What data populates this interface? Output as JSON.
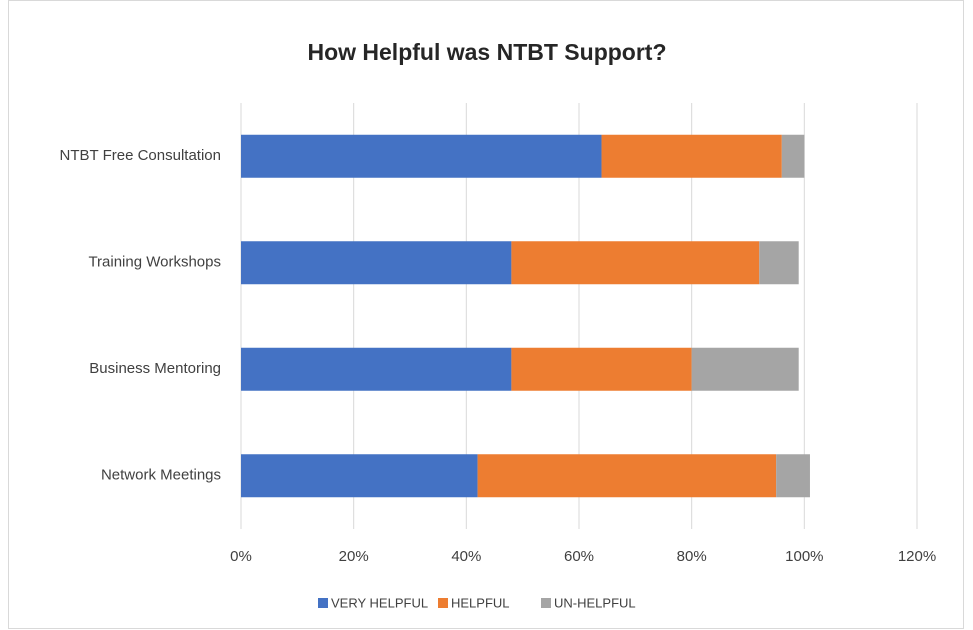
{
  "chart_data": {
    "type": "stacked_bar_horizontal",
    "title": "How Helpful was NTBT Support?",
    "categories": [
      "NTBT Free Consultation",
      "Training Workshops",
      "Business Mentoring",
      "Network Meetings"
    ],
    "series": [
      {
        "name": "VERY HELPFUL",
        "color": "#4472c4",
        "values": [
          64,
          48,
          48,
          42
        ]
      },
      {
        "name": "HELPFUL",
        "color": "#ed7d31",
        "values": [
          32,
          44,
          32,
          53
        ]
      },
      {
        "name": "UN-HELPFUL",
        "color": "#a5a5a5",
        "values": [
          4,
          7,
          19,
          6
        ]
      }
    ],
    "xlim": [
      0,
      120
    ],
    "xticks": [
      {
        "value": 0,
        "label": "0%"
      },
      {
        "value": 20,
        "label": "20%"
      },
      {
        "value": 40,
        "label": "40%"
      },
      {
        "value": 60,
        "label": "60%"
      },
      {
        "value": 80,
        "label": "80%"
      },
      {
        "value": 100,
        "label": "100%"
      },
      {
        "value": 120,
        "label": "120%"
      }
    ],
    "grid": true,
    "legend": "bottom"
  }
}
